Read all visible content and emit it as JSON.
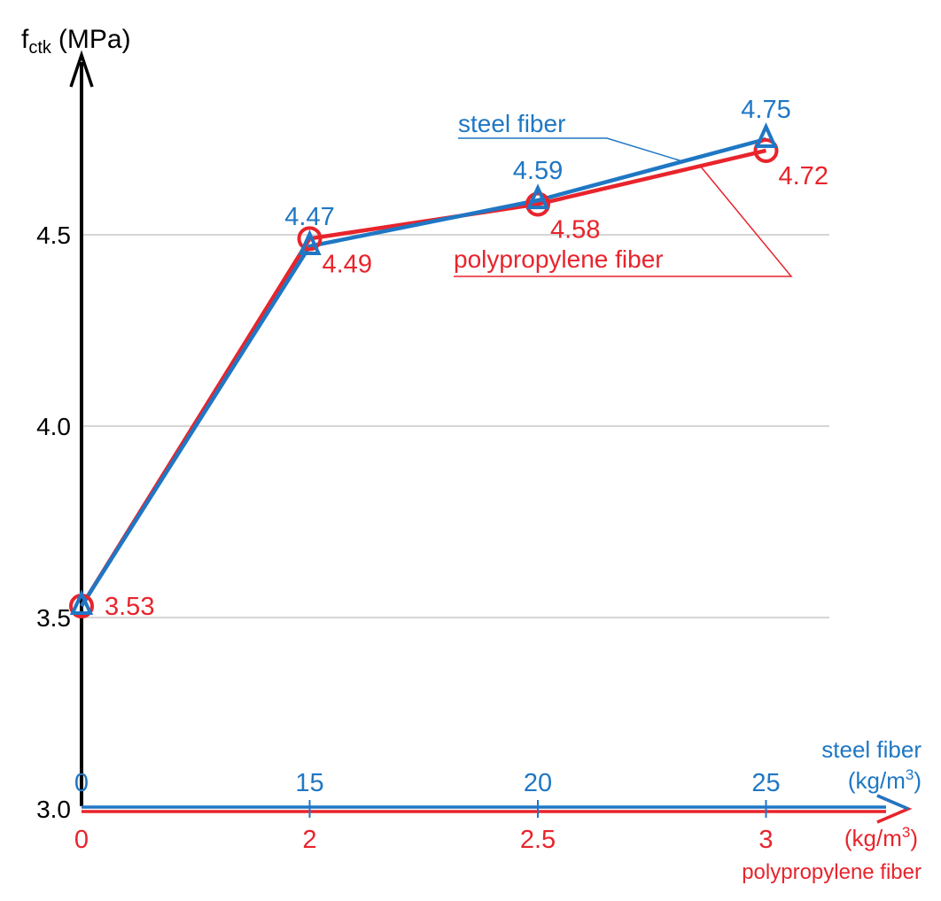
{
  "chart_data": {
    "type": "line",
    "title": "",
    "ylabel": {
      "main": "f",
      "sub": "ctk",
      "unit": "(MPa)"
    },
    "y_ticks": [
      3.0,
      3.5,
      4.0,
      4.5
    ],
    "y_tick_labels": [
      "3.0",
      "3.5",
      "4.0",
      "4.5"
    ],
    "ylim": [
      3.0,
      5.0
    ],
    "grid_lines": [
      3.5,
      4.0,
      4.5
    ],
    "x_positions": [
      0,
      1,
      2,
      3
    ],
    "x_top_axis": {
      "title": "steel fiber",
      "unit_prefix": "(kg/m",
      "unit_sup": "3",
      "unit_suffix": ")",
      "tick_labels": [
        "0",
        "15",
        "20",
        "25"
      ],
      "color": "#1f77c4"
    },
    "x_bottom_axis": {
      "title": "polypropylene fiber",
      "unit_prefix": "(kg/m",
      "unit_sup": "3",
      "unit_suffix": ")",
      "tick_labels": [
        "0",
        "2",
        "2.5",
        "3"
      ],
      "color": "#e8242c"
    },
    "series": [
      {
        "name": "steel fiber",
        "marker": "triangle",
        "color": "#1f77c4",
        "values": [
          3.53,
          4.47,
          4.59,
          4.75
        ],
        "labels": [
          "",
          "4.47",
          "4.59",
          "4.75"
        ]
      },
      {
        "name": "polypropylene fiber",
        "marker": "circle",
        "color": "#e8242c",
        "values": [
          3.53,
          4.49,
          4.58,
          4.72
        ],
        "labels": [
          "3.53",
          "4.49",
          "4.58",
          "4.72"
        ]
      }
    ],
    "legend": {
      "steel_label": "steel fiber",
      "pp_label": "polypropylene fiber"
    }
  }
}
